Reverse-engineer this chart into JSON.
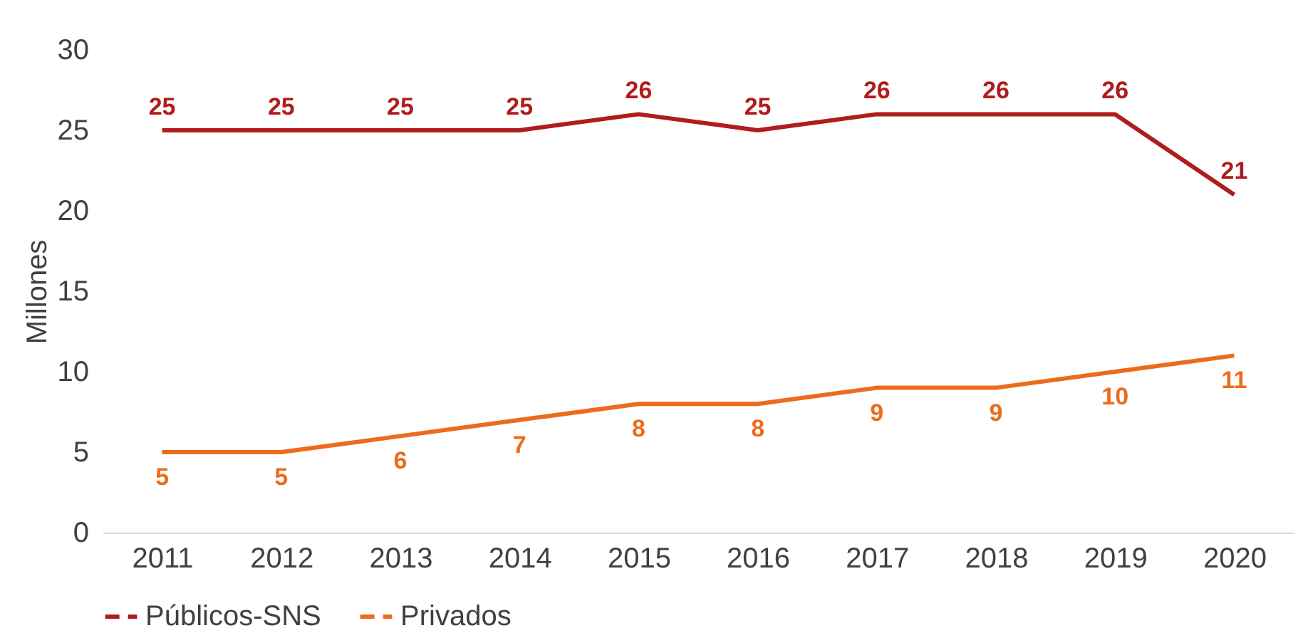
{
  "chart_data": {
    "type": "line",
    "ylabel": "Millones",
    "categories": [
      "2011",
      "2012",
      "2013",
      "2014",
      "2015",
      "2016",
      "2017",
      "2018",
      "2019",
      "2020"
    ],
    "series": [
      {
        "name": "Públicos-SNS",
        "color": "#b01c1c",
        "values": [
          25,
          25,
          25,
          25,
          26,
          25,
          26,
          26,
          26,
          21
        ]
      },
      {
        "name": "Privados",
        "color": "#ed6b1c",
        "values": [
          5,
          5,
          6,
          7,
          8,
          8,
          9,
          9,
          10,
          11
        ]
      }
    ],
    "ylim": [
      0,
      30
    ],
    "yticks": [
      0,
      5,
      10,
      15,
      20,
      25,
      30
    ],
    "legend": "bottom",
    "data_labels": true,
    "line_style": "solid"
  }
}
